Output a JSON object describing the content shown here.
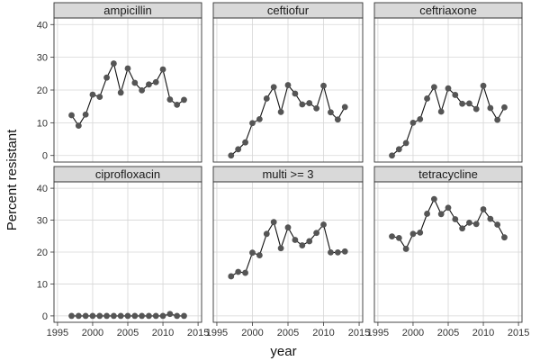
{
  "chart_data": {
    "type": "line",
    "xlabel": "year",
    "ylabel": "Percent resistant",
    "xlim": [
      1994.5,
      2015.5
    ],
    "ylim": [
      -2,
      42
    ],
    "xticks": [
      1995,
      2000,
      2005,
      2010,
      2015
    ],
    "yticks": [
      0,
      10,
      20,
      30,
      40
    ],
    "xtick_labels": [
      "1995",
      "2000",
      "2005",
      "2010",
      "2015"
    ],
    "ytick_labels": [
      "0",
      "10",
      "20",
      "30",
      "40"
    ],
    "grid": true,
    "colors": {
      "point": "#555555",
      "line": "#111111",
      "strip": "#d9d9d9",
      "grid": "#d6d6d6"
    },
    "x": [
      1997,
      1998,
      1999,
      2000,
      2001,
      2002,
      2003,
      2004,
      2005,
      2006,
      2007,
      2008,
      2009,
      2010,
      2011,
      2012,
      2013
    ],
    "panels": [
      {
        "name": "ampicillin",
        "values": [
          12.3,
          9.1,
          12.5,
          18.6,
          17.9,
          23.8,
          28.1,
          19.2,
          26.6,
          22.2,
          19.9,
          21.7,
          22.4,
          26.3,
          17.1,
          15.5,
          17.0
        ]
      },
      {
        "name": "ceftiofur",
        "values": [
          0.0,
          1.9,
          4.0,
          9.9,
          11.1,
          17.4,
          20.9,
          13.3,
          21.5,
          18.9,
          15.6,
          16.0,
          14.4,
          21.3,
          13.2,
          11.0,
          14.8
        ]
      },
      {
        "name": "ceftriaxone",
        "values": [
          0.0,
          1.9,
          3.8,
          10.0,
          11.1,
          17.4,
          20.9,
          13.4,
          20.5,
          18.5,
          15.8,
          15.9,
          14.2,
          21.3,
          14.5,
          10.9,
          14.7
        ]
      },
      {
        "name": "ciprofloxacin",
        "values": [
          0.0,
          0.0,
          0.0,
          0.0,
          0.0,
          0.0,
          0.0,
          0.0,
          0.0,
          0.0,
          0.0,
          0.0,
          0.0,
          0.0,
          0.6,
          0.0,
          0.0
        ]
      },
      {
        "name": "multi >= 3",
        "values": [
          12.4,
          13.8,
          13.5,
          19.8,
          19.0,
          25.7,
          29.4,
          21.2,
          27.7,
          23.8,
          22.1,
          23.4,
          26.0,
          28.6,
          19.9,
          19.9,
          20.2
        ]
      },
      {
        "name": "tetracycline",
        "values": [
          24.9,
          24.4,
          21.0,
          25.7,
          26.1,
          32.0,
          36.6,
          31.9,
          33.9,
          30.3,
          27.4,
          29.2,
          28.8,
          33.4,
          30.4,
          28.6,
          24.6
        ]
      }
    ]
  }
}
